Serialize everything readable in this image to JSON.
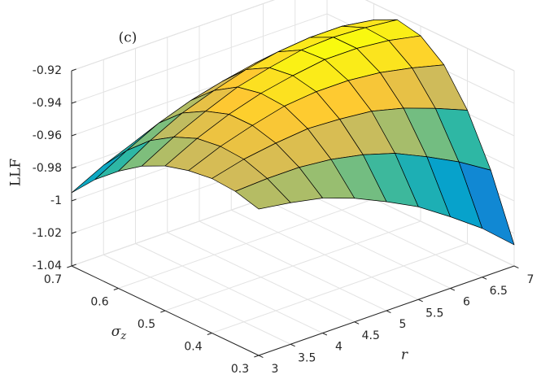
{
  "chart_data": {
    "type": "surface",
    "annotation": "(c)",
    "xlabel": "r",
    "ylabel": "σz",
    "zlabel": "LLF",
    "colormap": "parula",
    "grid": true,
    "edge_color": "#000000",
    "x": [
      3,
      3.5,
      4,
      4.5,
      5,
      5.5,
      6,
      6.5,
      7
    ],
    "y": [
      0.3,
      0.35,
      0.4,
      0.45,
      0.5,
      0.55,
      0.6,
      0.65,
      0.7
    ],
    "z": [
      [
        -0.95,
        -0.953,
        -0.957,
        -0.964,
        -0.973,
        -0.983,
        -0.996,
        -1.01,
        -1.027
      ],
      [
        -0.946,
        -0.945,
        -0.945,
        -0.947,
        -0.951,
        -0.957,
        -0.966,
        -0.976,
        -0.988
      ],
      [
        -0.945,
        -0.94,
        -0.937,
        -0.935,
        -0.936,
        -0.938,
        -0.943,
        -0.95,
        -0.958
      ],
      [
        -0.947,
        -0.939,
        -0.933,
        -0.928,
        -0.926,
        -0.926,
        -0.928,
        -0.932,
        -0.937
      ],
      [
        -0.951,
        -0.941,
        -0.933,
        -0.927,
        -0.923,
        -0.92,
        -0.92,
        -0.922,
        -0.926
      ],
      [
        -0.958,
        -0.947,
        -0.938,
        -0.93,
        -0.925,
        -0.921,
        -0.92,
        -0.921,
        -0.923
      ],
      [
        -0.968,
        -0.956,
        -0.946,
        -0.939,
        -0.933,
        -0.929,
        -0.927,
        -0.927,
        -0.93
      ],
      [
        -0.98,
        -0.969,
        -0.959,
        -0.952,
        -0.947,
        -0.943,
        -0.942,
        -0.943,
        -0.945
      ],
      [
        -0.995,
        -0.985,
        -0.977,
        -0.971,
        -0.967,
        -0.964,
        -0.964,
        -0.966,
        -0.97
      ]
    ],
    "xlim": [
      3,
      7
    ],
    "xticks": [
      3,
      3.5,
      4,
      4.5,
      5,
      5.5,
      6,
      6.5,
      7
    ],
    "ylim": [
      0.3,
      0.7
    ],
    "yticks": [
      0.3,
      0.4,
      0.5,
      0.6,
      0.7
    ],
    "zlim": [
      -1.04,
      -0.92
    ],
    "zticks": [
      -1.04,
      -1.02,
      -1,
      -0.98,
      -0.96,
      -0.94,
      -0.92
    ]
  }
}
